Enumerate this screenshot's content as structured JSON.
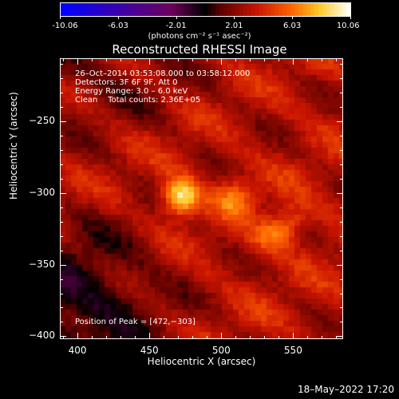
{
  "colorbar": {
    "ticks": [
      "-10.06",
      "-6.03",
      "-2.01",
      "2.01",
      "6.03",
      "10.06"
    ],
    "tick_values": [
      -10.06,
      -6.03,
      -2.01,
      2.01,
      6.03,
      10.06
    ],
    "range": [
      -10.06,
      10.06
    ],
    "units_label": "(photons cm⁻² s⁻¹ asec⁻²)"
  },
  "chart_data": {
    "type": "heatmap",
    "title": "Reconstructed RHESSI Image",
    "xlabel": "Heliocentric X (arcsec)",
    "ylabel": "Heliocentric Y (arcsec)",
    "xlim": [
      388,
      585
    ],
    "ylim": [
      -402,
      -206
    ],
    "x_ticks": [
      400,
      450,
      500,
      550
    ],
    "x_tick_labels": [
      "400",
      "450",
      "500",
      "550"
    ],
    "y_ticks": [
      -250,
      -300,
      -350,
      -400
    ],
    "y_tick_labels": [
      "−250",
      "−300",
      "−350",
      "−400"
    ],
    "sources": [
      {
        "x": 472,
        "y": -303,
        "peak": 10.06
      },
      {
        "x": 510,
        "y": -303,
        "peak": 6.6
      },
      {
        "x": 542,
        "y": -325,
        "peak": 7.2
      }
    ],
    "annotations": {
      "time": "26–Oct–2014 03:53:08.000 to 03:58:12.000",
      "detectors": "Detectors: 3F 6F 9F, Att 0",
      "energy": "Energy Range: 3.0 – 6.0 keV",
      "method": "Clean    Total counts: 2.36E+05",
      "peak": "Position of Peak = [472,−303]"
    }
  },
  "footer": {
    "date": "18–May–2022 17:20"
  }
}
